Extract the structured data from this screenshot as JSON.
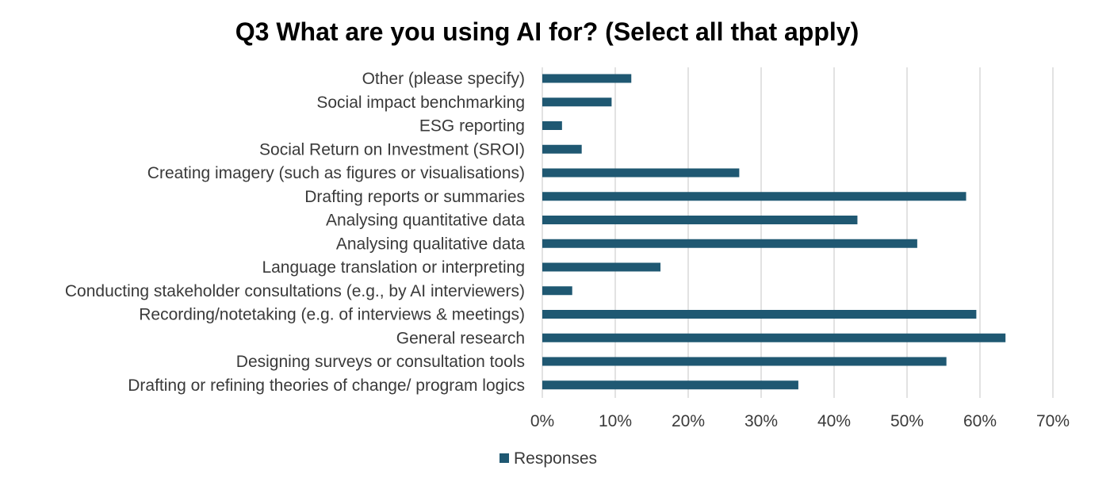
{
  "chart_data": {
    "type": "bar",
    "orientation": "horizontal",
    "title": "Q3 What are you using AI for? (Select all that apply)",
    "categories": [
      "Other (please specify)",
      "Social impact benchmarking",
      "ESG reporting",
      "Social Return on Investment (SROI)",
      "Creating imagery (such as figures or visualisations)",
      "Drafting reports or summaries",
      "Analysing quantitative data",
      "Analysing qualitative data",
      "Language translation or interpreting",
      "Conducting stakeholder consultations (e.g., by AI interviewers)",
      "Recording/notetaking (e.g. of interviews & meetings)",
      "General research",
      "Designing surveys or consultation tools",
      "Drafting or refining theories of change/ program logics"
    ],
    "series": [
      {
        "name": "Responses",
        "color": "#1f5872",
        "values": [
          12.2,
          9.5,
          2.7,
          5.4,
          27.0,
          58.1,
          43.2,
          51.4,
          16.2,
          4.1,
          59.5,
          63.5,
          55.4,
          35.1
        ]
      }
    ],
    "xlim": [
      0,
      70
    ],
    "x_ticks": [
      0,
      10,
      20,
      30,
      40,
      50,
      60,
      70
    ],
    "x_tick_labels": [
      "0%",
      "10%",
      "20%",
      "30%",
      "40%",
      "50%",
      "60%",
      "70%"
    ],
    "grid": "vertical",
    "grid_color": "#d9d9d9",
    "legend": {
      "placement": "bottom-left",
      "entries": [
        "Responses"
      ]
    }
  }
}
